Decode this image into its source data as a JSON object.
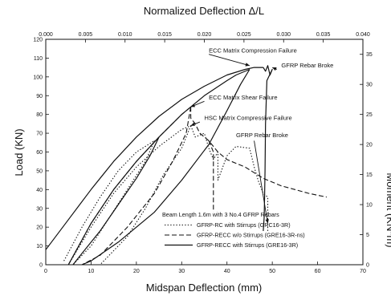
{
  "chart_data": {
    "type": "line",
    "title": "Normalized Deflection Δ/L",
    "xlabel": "Midspan Deflection (mm)",
    "ylabel": "Load (KN)",
    "y2label": "Moment (KN*m)",
    "xlim": [
      0,
      70
    ],
    "ylim": [
      0,
      120
    ],
    "x2lim": [
      0,
      0.04
    ],
    "y2lim": [
      0,
      37.5
    ],
    "xticks": [
      "0",
      "10",
      "20",
      "30",
      "40",
      "50",
      "60",
      "70"
    ],
    "yticks": [
      "0",
      "10",
      "20",
      "30",
      "40",
      "50",
      "60",
      "70",
      "80",
      "90",
      "100",
      "110",
      "120"
    ],
    "x2ticks": [
      "0.000",
      "0.005",
      "0.010",
      "0.015",
      "0.020",
      "0.025",
      "0.030",
      "0.035",
      "0.040"
    ],
    "y2ticks": [
      "0",
      "5",
      "10",
      "15",
      "20",
      "25",
      "30",
      "35"
    ],
    "grid": false,
    "legend_position": "bottom-right",
    "legend_title": "Beam Length 1.6m with 3 No.4 GFRP Rebars",
    "series": [
      {
        "name": "GFRP-RC with Stirrups (GRC16-3R)",
        "dash": "dotted",
        "segments": [
          [
            [
              5,
              0
            ],
            [
              10,
              20
            ],
            [
              15,
              38
            ],
            [
              20,
              52
            ],
            [
              25,
              63
            ],
            [
              30,
              72
            ],
            [
              32,
              74
            ]
          ],
          [
            [
              4,
              2
            ],
            [
              8,
              20
            ],
            [
              12,
              36
            ],
            [
              16,
              50
            ],
            [
              20,
              60
            ],
            [
              24,
              66
            ]
          ],
          [
            [
              24,
              66
            ],
            [
              22,
              55
            ],
            [
              18,
              40
            ],
            [
              14,
              25
            ],
            [
              10,
              10
            ],
            [
              6,
              0
            ]
          ],
          [
            [
              32,
              74
            ],
            [
              30,
              62
            ],
            [
              26,
              48
            ],
            [
              22,
              30
            ],
            [
              18,
              15
            ],
            [
              12,
              0
            ]
          ],
          [
            [
              32,
              74
            ],
            [
              33,
              68
            ],
            [
              35,
              70
            ],
            [
              36,
              62
            ],
            [
              37,
              56
            ],
            [
              38,
              60
            ],
            [
              38,
              45
            ],
            [
              40,
              58
            ],
            [
              42,
              63
            ],
            [
              45,
              62
            ],
            [
              46,
              52
            ],
            [
              47,
              44
            ],
            [
              48,
              38
            ],
            [
              49,
              36
            ],
            [
              49,
              18
            ]
          ]
        ]
      },
      {
        "name": "GFRP-RECC w/o Stirrups (GRE16-3R-ns)",
        "dash": "dashed",
        "segments": [
          [
            [
              5,
              0
            ],
            [
              10,
              22
            ],
            [
              15,
              40
            ],
            [
              20,
              55
            ],
            [
              25,
              68
            ],
            [
              30,
              80
            ],
            [
              32,
              84
            ]
          ],
          [
            [
              32,
              84
            ],
            [
              31,
              70
            ],
            [
              28,
              55
            ],
            [
              24,
              38
            ],
            [
              18,
              20
            ],
            [
              12,
              5
            ],
            [
              8,
              0
            ]
          ],
          [
            [
              32,
              84
            ],
            [
              32,
              78
            ],
            [
              33,
              75
            ],
            [
              34,
              70
            ],
            [
              35,
              68
            ],
            [
              36,
              66
            ],
            [
              38,
              60
            ],
            [
              40,
              56
            ],
            [
              42,
              54
            ],
            [
              44,
              52
            ],
            [
              46,
              49
            ],
            [
              48,
              46
            ],
            [
              50,
              44
            ],
            [
              52,
              42
            ],
            [
              55,
              40
            ],
            [
              58,
              38
            ],
            [
              60,
              37
            ],
            [
              62,
              36
            ]
          ],
          [
            [
              36,
              66
            ],
            [
              37,
              60
            ],
            [
              37,
              40
            ],
            [
              37,
              28
            ]
          ]
        ]
      },
      {
        "name": "GFRP-RECC with Stirrups (GRE16-3R)",
        "dash": "solid",
        "segments": [
          [
            [
              0,
              8
            ],
            [
              5,
              24
            ],
            [
              10,
              40
            ],
            [
              15,
              55
            ],
            [
              20,
              68
            ],
            [
              25,
              79
            ],
            [
              30,
              88
            ],
            [
              35,
              95
            ],
            [
              40,
              101
            ],
            [
              44,
              104
            ],
            [
              46,
              105
            ],
            [
              48,
              105
            ]
          ],
          [
            [
              5,
              0
            ],
            [
              10,
              22
            ],
            [
              15,
              40
            ],
            [
              20,
              55
            ],
            [
              25,
              68
            ],
            [
              30,
              80
            ],
            [
              35,
              90
            ],
            [
              40,
              98
            ],
            [
              42,
              101
            ],
            [
              45,
              104
            ]
          ],
          [
            [
              25,
              68
            ],
            [
              23,
              58
            ],
            [
              20,
              46
            ],
            [
              16,
              32
            ],
            [
              12,
              18
            ],
            [
              8,
              6
            ],
            [
              6,
              0
            ]
          ],
          [
            [
              45,
              104
            ],
            [
              43,
              96
            ],
            [
              40,
              82
            ],
            [
              36,
              64
            ],
            [
              30,
              45
            ],
            [
              24,
              28
            ],
            [
              16,
              12
            ],
            [
              10,
              2
            ],
            [
              8,
              0
            ]
          ],
          [
            [
              48,
              105
            ],
            [
              48.5,
              103
            ],
            [
              49,
              106
            ],
            [
              49.5,
              101
            ],
            [
              50,
              104
            ],
            [
              48.8,
              98
            ],
            [
              48.5,
              75
            ],
            [
              48.4,
              50
            ],
            [
              48.3,
              35
            ],
            [
              48.2,
              25
            ],
            [
              48,
              18
            ]
          ]
        ]
      }
    ],
    "annotations": [
      {
        "text": "ECC Matrix Compression Failure",
        "x": 36,
        "y": 113
      },
      {
        "text": "GFRP Rebar Broke",
        "x": 52,
        "y": 105
      },
      {
        "text": "ECC Matrix Shear Failure",
        "x": 36,
        "y": 88
      },
      {
        "text": "HSC Matrix Compressive Failure",
        "x": 35,
        "y": 77
      },
      {
        "text": "GFRP Rebar Broke",
        "x": 42,
        "y": 68
      }
    ],
    "arrows": [
      {
        "from": [
          36,
          112
        ],
        "to": [
          45,
          106
        ]
      },
      {
        "from": [
          51,
          104
        ],
        "to": [
          50,
          105
        ]
      },
      {
        "from": [
          35,
          87
        ],
        "to": [
          32,
          84
        ]
      },
      {
        "from": [
          34,
          76
        ],
        "to": [
          32,
          74
        ]
      },
      {
        "from": [
          46,
          66
        ],
        "to": [
          49,
          22
        ]
      }
    ]
  }
}
